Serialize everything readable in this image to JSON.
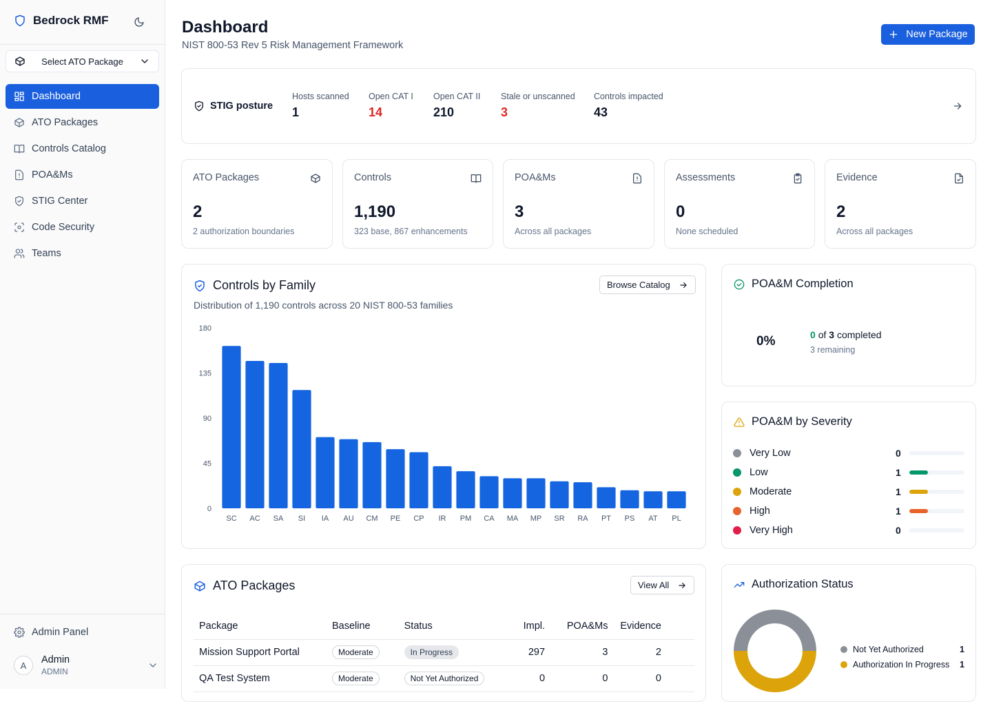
{
  "app": {
    "name": "Bedrock RMF"
  },
  "sidebar": {
    "package_select": "Select ATO Package",
    "items": [
      {
        "label": "Dashboard",
        "icon": "grid-icon",
        "active": true
      },
      {
        "label": "ATO Packages",
        "icon": "package-icon"
      },
      {
        "label": "Controls Catalog",
        "icon": "book-icon"
      },
      {
        "label": "POA&Ms",
        "icon": "file-alert-icon"
      },
      {
        "label": "STIG Center",
        "icon": "shield-icon"
      },
      {
        "label": "Code Security",
        "icon": "scan-icon"
      },
      {
        "label": "Teams",
        "icon": "users-icon"
      }
    ],
    "admin_panel": "Admin Panel",
    "user": {
      "avatar": "A",
      "name": "Admin",
      "role": "ADMIN"
    }
  },
  "header": {
    "title": "Dashboard",
    "subtitle": "NIST 800-53 Rev 5 Risk Management Framework",
    "new_button": "New Package"
  },
  "stig": {
    "label": "STIG posture",
    "metrics": [
      {
        "label": "Hosts scanned",
        "value": "1",
        "alert": false
      },
      {
        "label": "Open CAT I",
        "value": "14",
        "alert": true
      },
      {
        "label": "Open CAT II",
        "value": "210",
        "alert": false
      },
      {
        "label": "Stale or unscanned",
        "value": "3",
        "alert": true
      },
      {
        "label": "Controls impacted",
        "value": "43",
        "alert": false
      }
    ]
  },
  "stats": [
    {
      "title": "ATO Packages",
      "value": "2",
      "sub": "2 authorization boundaries",
      "icon": "package-icon"
    },
    {
      "title": "Controls",
      "value": "1,190",
      "sub": "323 base, 867 enhancements",
      "icon": "book-icon"
    },
    {
      "title": "POA&Ms",
      "value": "3",
      "sub": "Across all packages",
      "icon": "file-alert-icon"
    },
    {
      "title": "Assessments",
      "value": "0",
      "sub": "None scheduled",
      "icon": "clipboard-check-icon"
    },
    {
      "title": "Evidence",
      "value": "2",
      "sub": "Across all packages",
      "icon": "file-check-icon"
    }
  ],
  "controls_chart": {
    "title": "Controls by Family",
    "subtitle": "Distribution of 1,190 controls across 20 NIST 800-53 families",
    "button": "Browse Catalog"
  },
  "chart_data": {
    "type": "bar",
    "title": "Controls by Family",
    "categories": [
      "SC",
      "AC",
      "SA",
      "SI",
      "IA",
      "AU",
      "CM",
      "PE",
      "CP",
      "IR",
      "PM",
      "CA",
      "MA",
      "MP",
      "SR",
      "RA",
      "PT",
      "PS",
      "AT",
      "PL"
    ],
    "values": [
      162,
      147,
      145,
      118,
      71,
      69,
      66,
      59,
      56,
      42,
      37,
      32,
      30,
      30,
      27,
      26,
      21,
      18,
      17,
      17
    ],
    "yticks": [
      0,
      45,
      90,
      135,
      180
    ],
    "ylim": [
      0,
      180
    ],
    "color": "#1565e0"
  },
  "poam_completion": {
    "title": "POA&M Completion",
    "percent": "0%",
    "completed": "0",
    "of_word": "of",
    "total": "3",
    "completed_word": "completed",
    "remaining": "3 remaining"
  },
  "poam_severity": {
    "title": "POA&M by Severity",
    "max": 3,
    "rows": [
      {
        "name": "Very Low",
        "count": 0,
        "color": "#8b8f98"
      },
      {
        "name": "Low",
        "count": 1,
        "color": "#059669"
      },
      {
        "name": "Moderate",
        "count": 1,
        "color": "#dca30a"
      },
      {
        "name": "High",
        "count": 1,
        "color": "#e8622c"
      },
      {
        "name": "Very High",
        "count": 0,
        "color": "#e11d48"
      }
    ]
  },
  "packages": {
    "title": "ATO Packages",
    "button": "View All",
    "columns": [
      "Package",
      "Baseline",
      "Status",
      "Impl.",
      "POA&Ms",
      "Evidence"
    ],
    "rows": [
      {
        "package": "Mission Support Portal",
        "baseline": "Moderate",
        "status": "In Progress",
        "impl": "297",
        "poams": "3",
        "evidence": "2"
      },
      {
        "package": "QA Test System",
        "baseline": "Moderate",
        "status": "Not Yet Authorized",
        "impl": "0",
        "poams": "0",
        "evidence": "0"
      }
    ]
  },
  "auth_status": {
    "title": "Authorization Status",
    "items": [
      {
        "label": "Not Yet Authorized",
        "value": 1,
        "color": "#8b8f98"
      },
      {
        "label": "Authorization In Progress",
        "value": 1,
        "color": "#dca30a"
      }
    ]
  }
}
